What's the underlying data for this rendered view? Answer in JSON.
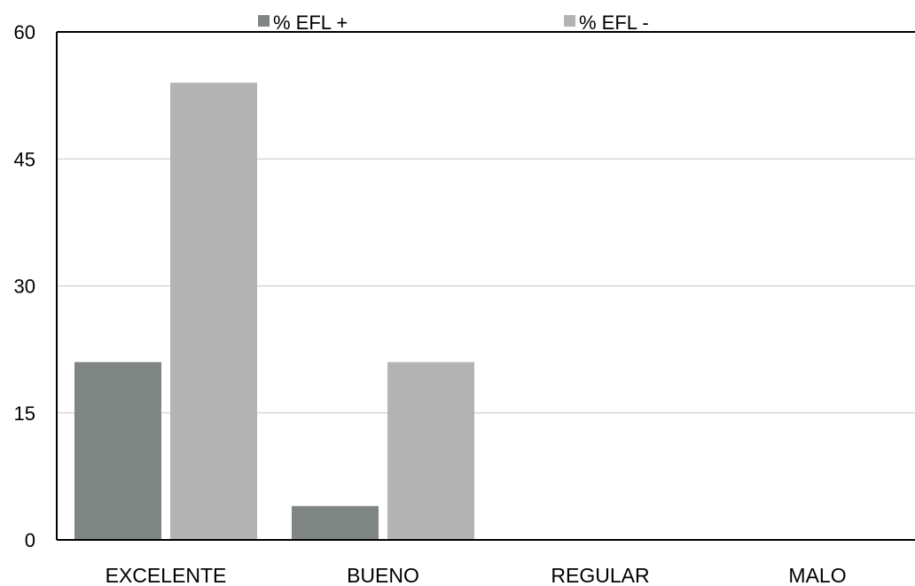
{
  "chart_data": {
    "type": "bar",
    "title": "",
    "xlabel": "",
    "ylabel": "",
    "categories": [
      "EXCELENTE",
      "BUENO",
      "REGULAR",
      "MALO"
    ],
    "series": [
      {
        "name": "% EFL +",
        "values": [
          21,
          4,
          0,
          0
        ],
        "color": "#808684"
      },
      {
        "name": "% EFL -",
        "values": [
          54,
          21,
          0,
          0
        ],
        "color": "#b3b3b3"
      }
    ],
    "ylim": [
      0,
      60
    ],
    "yticks": [
      "0",
      "15",
      "30",
      "45",
      "60"
    ],
    "grid": true,
    "legend": "top"
  }
}
